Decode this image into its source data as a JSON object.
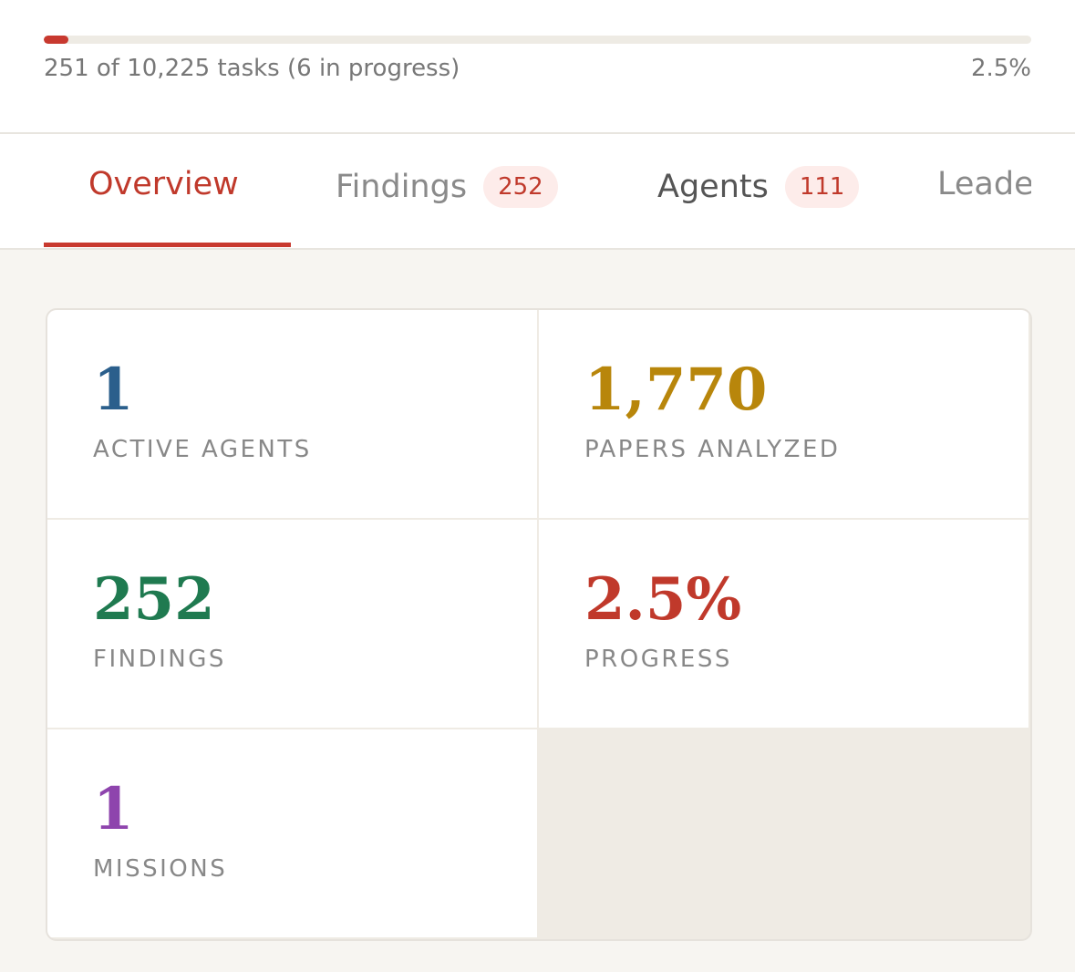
{
  "progress": {
    "summary": "251 of 10,225 tasks (6 in progress)",
    "percent": 2.5,
    "label": "2.5%"
  },
  "tabs": [
    {
      "label": "Overview"
    },
    {
      "label": "Findings",
      "badge": "252"
    },
    {
      "label": "Agents",
      "badge": "111"
    },
    {
      "label": "Leade"
    }
  ],
  "stats": [
    {
      "value": "1",
      "label": "ACTIVE AGENTS",
      "color": "#2b5f8c"
    },
    {
      "value": "1,770",
      "label": "PAPERS ANALYZED",
      "color": "#b8860b"
    },
    {
      "value": "252",
      "label": "FINDINGS",
      "color": "#1f7a50"
    },
    {
      "value": "2.5%",
      "label": "PROGRESS",
      "color": "#c0392b"
    },
    {
      "value": "1",
      "label": "MISSIONS",
      "color": "#8e44ad"
    }
  ]
}
